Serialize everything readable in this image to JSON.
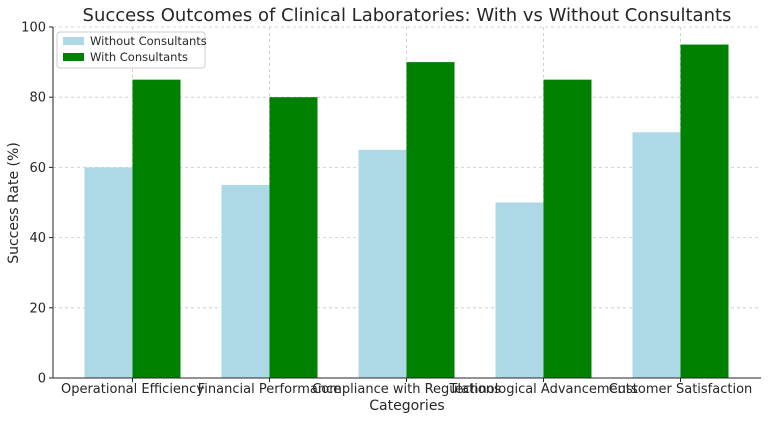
{
  "chart_data": {
    "type": "bar",
    "title": "Success Outcomes of Clinical Laboratories: With vs Without Consultants",
    "xlabel": "Categories",
    "ylabel": "Success Rate (%)",
    "ylim": [
      0,
      100
    ],
    "yticks": [
      0,
      20,
      40,
      60,
      80,
      100
    ],
    "grid": true,
    "legend_position": "top-left",
    "categories": [
      "Operational Efficiency",
      "Financial Performance",
      "Compliance with Regulations",
      "Technological Advancements",
      "Customer Satisfaction"
    ],
    "series": [
      {
        "name": "Without Consultants",
        "color": "#add8e6",
        "values": [
          60,
          55,
          65,
          50,
          70
        ]
      },
      {
        "name": "With Consultants",
        "color": "#008000",
        "values": [
          85,
          80,
          90,
          85,
          95
        ]
      }
    ]
  }
}
